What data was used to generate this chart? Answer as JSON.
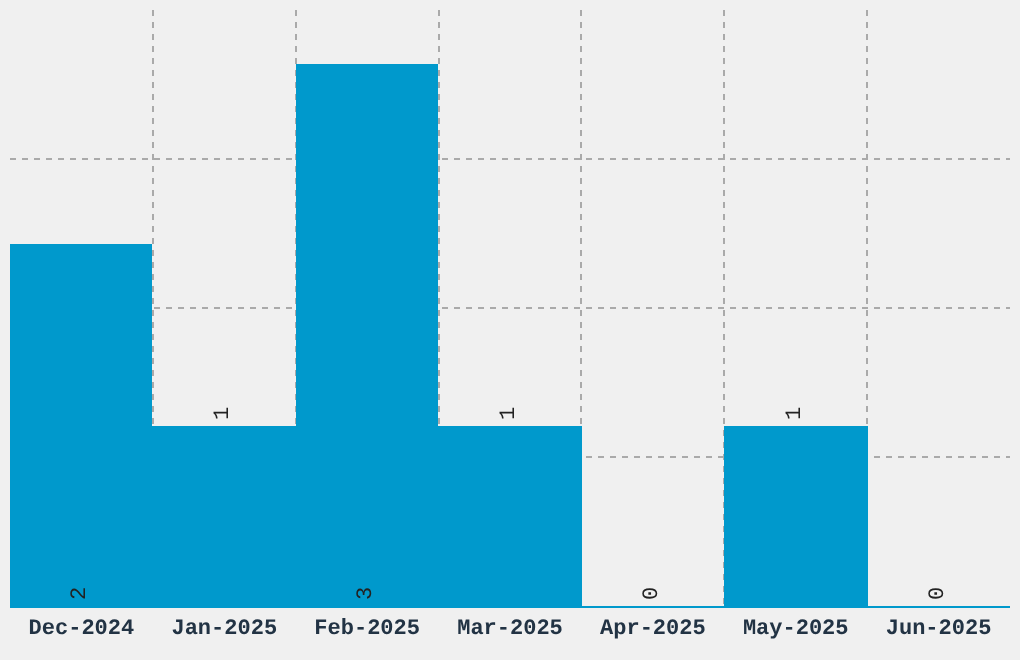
{
  "chart_data": {
    "type": "bar",
    "categories": [
      "Dec-2024",
      "Jan-2025",
      "Feb-2025",
      "Mar-2025",
      "Apr-2025",
      "May-2025",
      "Jun-2025"
    ],
    "values": [
      2,
      1,
      3,
      1,
      0,
      1,
      0
    ],
    "color": "#0099cc",
    "ylim": [
      0,
      3.3
    ],
    "yticks": [
      {
        "value": 0.825,
        "label": null
      },
      {
        "value": 1.65,
        "label": null
      },
      {
        "value": 2.475,
        "label": null
      }
    ],
    "data_labels": true,
    "grid": true
  }
}
